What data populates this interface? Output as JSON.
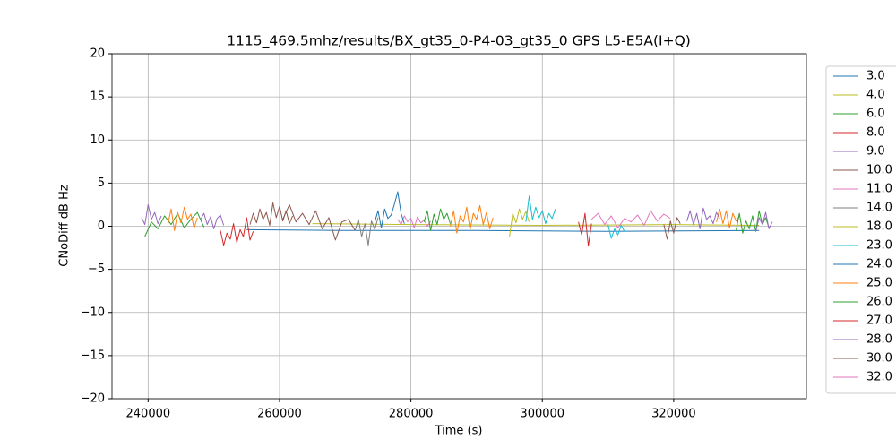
{
  "chart_data": {
    "type": "line",
    "title": "1115_469.5mhz/results/BX_gt35_0-P4-03_gt35_0 GPS L5-E5A(I+Q)",
    "x_label": "Time (s)",
    "y_label": "CNoDiff dB Hz",
    "xlim": [
      234500,
      340200
    ],
    "ylim": [
      -20,
      20
    ],
    "xticks": [
      240000,
      260000,
      280000,
      300000,
      320000
    ],
    "yticks": [
      {
        "value": -20,
        "label": "−20"
      },
      {
        "value": -15,
        "label": "−15"
      },
      {
        "value": -10,
        "label": "−10"
      },
      {
        "value": -5,
        "label": "−5"
      },
      0,
      5,
      10,
      15,
      20
    ],
    "grid": true,
    "legend": "outside-right",
    "series": [
      {
        "name": "3.0",
        "color": "#1f77b4",
        "x": [
          255000,
          270000,
          290000,
          310000,
          333000
        ],
        "values": [
          -0.4,
          -0.5,
          -0.5,
          -0.6,
          -0.5
        ]
      },
      {
        "name": "4.0",
        "color": "#bcbd22",
        "x": [
          265000,
          280000,
          300000,
          320000,
          333000
        ],
        "values": [
          0.3,
          0.2,
          0.1,
          0.2,
          0.1
        ]
      },
      {
        "name": "6.0",
        "color": "#2ca02c",
        "x": [
          239500,
          240500,
          241500,
          242500,
          243500,
          244500,
          245500,
          246500,
          247500,
          248500
        ],
        "values": [
          -1.2,
          0.5,
          -0.3,
          1.2,
          0.2,
          1.5,
          -0.2,
          0.8,
          1.6,
          -0.1
        ]
      },
      {
        "name": "8.0",
        "color": "#d62728",
        "x": [
          251000,
          251500,
          252000,
          252500,
          253000,
          253500,
          254000,
          254500,
          255000,
          255500,
          256000
        ],
        "values": [
          -0.5,
          -2.2,
          -0.8,
          -1.5,
          0.3,
          -1.9,
          -0.4,
          -1.2,
          1.0,
          -1.6,
          -0.6
        ]
      },
      {
        "name": "9.0",
        "color": "#9467bd",
        "x": [
          248000,
          248500,
          249000,
          249500,
          250000,
          250500,
          251000,
          251500
        ],
        "values": [
          0.8,
          1.5,
          0.2,
          1.1,
          -0.3,
          0.9,
          1.3,
          0.1
        ]
      },
      {
        "name": "10.0",
        "color": "#8c564b",
        "x": [
          255500,
          256000,
          256500,
          257000,
          257500,
          258000,
          258500,
          259000,
          259500,
          260000,
          260500,
          261000,
          261500,
          262000
        ],
        "values": [
          0.2,
          1.5,
          0.4,
          2.0,
          0.8,
          1.6,
          0.1,
          2.7,
          1.0,
          2.3,
          0.6,
          1.8,
          0.3,
          1.2
        ]
      },
      {
        "name": "11.0",
        "color": "#e377c2",
        "x": [
          278000,
          278500,
          279000,
          279500,
          280000,
          280500,
          281000,
          281500,
          282000,
          282500,
          283000
        ],
        "values": [
          0.8,
          0.2,
          1.2,
          0.5,
          0.9,
          -0.2,
          1.1,
          0.4,
          0.7,
          0.0,
          0.6
        ]
      },
      {
        "name": "14.0",
        "color": "#7f7f7f",
        "x": [
          271500,
          272000,
          272500,
          273000,
          273500,
          274000,
          274500,
          275000
        ],
        "values": [
          -0.5,
          0.8,
          -1.2,
          0.3,
          -2.2,
          0.6,
          -0.4,
          1.0
        ]
      },
      {
        "name": "18.0",
        "color": "#bcbd22",
        "x": [
          295000,
          295500,
          296000,
          296500,
          297000,
          297500,
          298000
        ],
        "values": [
          -1.2,
          1.5,
          0.4,
          2.0,
          0.8,
          1.7,
          0.5
        ]
      },
      {
        "name": "23.0",
        "color": "#17becf",
        "x": [
          297500,
          298000,
          298500,
          299000,
          299500,
          300000,
          300500,
          301000,
          301500,
          302000,
          null,
          310000,
          310500,
          311000,
          311500,
          312000,
          312500
        ],
        "values": [
          0.5,
          3.5,
          0.8,
          2.2,
          1.0,
          1.8,
          0.3,
          1.5,
          0.9,
          2.0,
          null,
          0.2,
          -1.4,
          -0.3,
          -1.0,
          0.1,
          -0.6
        ]
      },
      {
        "name": "24.0",
        "color": "#1f77b4",
        "x": [
          274500,
          275000,
          275500,
          276000,
          276500,
          277000,
          277500,
          278000,
          278500,
          279000
        ],
        "values": [
          0.5,
          1.8,
          -0.2,
          2.0,
          0.9,
          1.3,
          2.6,
          4.0,
          1.5,
          0.3
        ]
      },
      {
        "name": "25.0",
        "color": "#ff7f0e",
        "x": [
          243000,
          243500,
          244000,
          244500,
          245000,
          245500,
          246000,
          246500,
          247000,
          247500,
          null,
          286000,
          286500,
          287000,
          287500,
          288000,
          288500,
          289000,
          289500,
          290000,
          290500,
          291000,
          291500,
          292000,
          292500,
          null,
          326500,
          327000,
          327500,
          328000,
          328500,
          329000,
          329500,
          330000
        ],
        "values": [
          0.2,
          2.0,
          -0.5,
          1.6,
          0.4,
          2.2,
          0.8,
          1.4,
          -0.2,
          1.0,
          null,
          0.0,
          1.8,
          -0.8,
          1.2,
          0.5,
          2.2,
          -0.4,
          1.5,
          0.8,
          2.4,
          0.2,
          1.6,
          -0.3,
          1.0,
          null,
          0.5,
          2.0,
          0.3,
          1.8,
          -0.2,
          1.5,
          0.6,
          1.2
        ]
      },
      {
        "name": "26.0",
        "color": "#2ca02c",
        "x": [
          282000,
          282500,
          283000,
          283500,
          284000,
          284500,
          285000,
          285500,
          286000,
          null,
          329500,
          330000,
          330500,
          331000,
          331500,
          332000,
          332500,
          333000,
          333500,
          334000,
          334500
        ],
        "values": [
          0.5,
          1.8,
          -0.5,
          1.4,
          0.2,
          2.0,
          0.8,
          1.5,
          0.3,
          null,
          -0.5,
          1.5,
          -0.8,
          0.6,
          -0.3,
          1.2,
          -0.6,
          1.8,
          0.2,
          1.0,
          -0.2
        ]
      },
      {
        "name": "27.0",
        "color": "#d62728",
        "x": [
          305500,
          306000,
          306500,
          307000,
          307500
        ],
        "values": [
          0.5,
          -1.0,
          1.5,
          -2.3,
          0.3
        ]
      },
      {
        "name": "28.0",
        "color": "#9467bd",
        "x": [
          239000,
          239500,
          240000,
          240500,
          241000,
          241500,
          242000,
          null,
          322000,
          322500,
          323000,
          323500,
          324000,
          324500,
          325000,
          325500,
          326000,
          326500,
          327000,
          null,
          332500,
          333000,
          333500,
          334000,
          334500,
          335000
        ],
        "values": [
          1.0,
          0.2,
          2.5,
          0.8,
          1.6,
          0.3,
          1.2,
          null,
          0.6,
          1.8,
          0.2,
          1.5,
          -0.3,
          2.1,
          0.8,
          1.2,
          0.3,
          1.6,
          0.9,
          null,
          -0.6,
          1.0,
          0.2,
          1.6,
          -0.3,
          0.5
        ]
      },
      {
        "name": "30.0",
        "color": "#8c564b",
        "x": [
          260500,
          261500,
          262500,
          263500,
          264500,
          265500,
          266500,
          267500,
          268500,
          269500,
          270500,
          271500,
          null,
          318500,
          319000,
          319500,
          320000,
          320500,
          321000
        ],
        "values": [
          0.8,
          2.5,
          0.5,
          1.5,
          0.2,
          1.8,
          -0.3,
          1.0,
          -1.6,
          0.5,
          0.8,
          -0.5,
          null,
          0.2,
          -1.5,
          0.6,
          -0.8,
          1.0,
          0.3
        ]
      },
      {
        "name": "32.0",
        "color": "#e377c2",
        "x": [
          307500,
          308500,
          309500,
          310500,
          311500,
          312500,
          313500,
          314500,
          315500,
          316500,
          317500,
          318500,
          319500
        ],
        "values": [
          0.8,
          1.5,
          0.2,
          1.2,
          -0.2,
          0.9,
          0.5,
          1.3,
          0.1,
          1.8,
          0.6,
          1.4,
          0.9
        ]
      }
    ]
  }
}
